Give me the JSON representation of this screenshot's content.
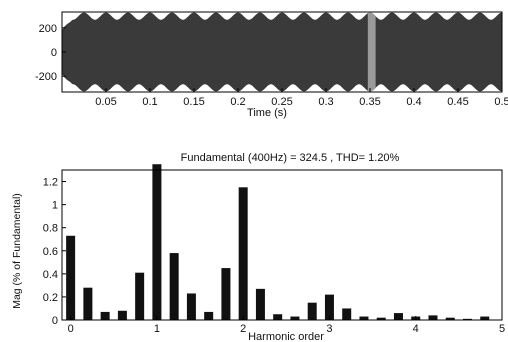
{
  "chart_data": [
    {
      "type": "line",
      "title": "",
      "xlabel": "Time (s)",
      "ylabel": "",
      "xlim": [
        0,
        0.5
      ],
      "ylim": [
        -330,
        330
      ],
      "x_ticks": [
        0.05,
        0.1,
        0.15,
        0.2,
        0.25,
        0.3,
        0.35,
        0.4,
        0.45,
        0.5
      ],
      "x_tick_labels": [
        "0.05",
        "0.1",
        "0.15",
        "0.2",
        "0.25",
        "0.3",
        "0.35",
        "0.4",
        "0.45",
        "0.5"
      ],
      "y_ticks": [
        200,
        0,
        -200
      ],
      "y_tick_labels": [
        "200",
        "0",
        "-200"
      ],
      "series": [
        {
          "amplitude": 324.5,
          "carrier_frequency_hz": 400,
          "envelope_beat_frequency_hz": 40,
          "envelope_depth": 0.18,
          "highlight_window_s": [
            0.348,
            0.356
          ],
          "color": "#3a3a3a",
          "highlight_color": "#9a9a9a"
        }
      ],
      "grid": false
    },
    {
      "type": "bar",
      "title": "Fundamental (400Hz) = 324.5 , THD= 1.20%",
      "xlabel": "Harmonic order",
      "ylabel": "Mag (% of Fundamental)",
      "xlim": [
        -0.1,
        5
      ],
      "ylim": [
        0,
        1.3
      ],
      "x_ticks": [
        0,
        1,
        2,
        3,
        4,
        5
      ],
      "x_tick_labels": [
        "0",
        "1",
        "2",
        "3",
        "4",
        "5"
      ],
      "y_ticks": [
        0,
        0.2,
        0.4,
        0.6,
        0.8,
        1,
        1.2
      ],
      "y_tick_labels": [
        "0",
        "0.2",
        "0.4",
        "0.6",
        "0.8",
        "1",
        "1.2"
      ],
      "x": [
        0,
        0.2,
        0.4,
        0.6,
        0.8,
        1.0,
        1.2,
        1.4,
        1.6,
        1.8,
        2.0,
        2.2,
        2.4,
        2.6,
        2.8,
        3.0,
        3.2,
        3.4,
        3.6,
        3.8,
        4.0,
        4.2,
        4.4,
        4.6,
        4.8
      ],
      "values": [
        0.73,
        0.28,
        0.07,
        0.08,
        0.41,
        1.35,
        0.58,
        0.23,
        0.07,
        0.45,
        1.15,
        0.27,
        0.05,
        0.03,
        0.15,
        0.22,
        0.1,
        0.03,
        0.02,
        0.06,
        0.03,
        0.04,
        0.02,
        0.01,
        0.03
      ],
      "bar_color": "#111111",
      "grid": false
    }
  ]
}
